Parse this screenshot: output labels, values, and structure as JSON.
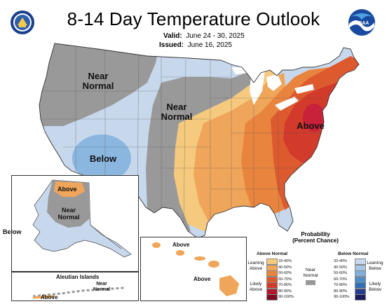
{
  "header": {
    "title": "8-14 Day Temperature Outlook",
    "valid_label": "Valid:",
    "valid_value": "June 24 - 30, 2025",
    "issued_label": "Issued:",
    "issued_value": "June 16, 2025"
  },
  "logos": {
    "noaa": "NOAA"
  },
  "map": {
    "conus_labels": {
      "near_normal_west": "Near Normal",
      "near_normal_central": "Near Normal",
      "below_southwest": "Below",
      "above_east": "Above"
    },
    "alaska_labels": {
      "above": "Above",
      "near_normal": "Near Normal",
      "below": "Below",
      "aleutian_title": "Aleutian Islands",
      "aleutian_near_normal": "Near Normal",
      "aleutian_above": "Above"
    },
    "hawaii_labels": {
      "above_top": "Above",
      "above_bottom": "Above"
    }
  },
  "legend": {
    "title": "Probability",
    "subtitle": "(Percent Chance)",
    "above_header": "Above Normal",
    "below_header": "Below Normal",
    "leaning_above": "Leaning Above",
    "likely_above": "Likely Above",
    "near_normal": "Near Normal",
    "leaning_below": "Leaning Below",
    "likely_below": "Likely Below",
    "above_bins": [
      "33-40%",
      "40-50%",
      "50-60%",
      "60-70%",
      "70-80%",
      "80-90%",
      "90-100%"
    ],
    "below_bins": [
      "33-40%",
      "40-50%",
      "50-60%",
      "60-70%",
      "70-80%",
      "80-90%",
      "90-100%"
    ],
    "above_colors": [
      "#f6ca7e",
      "#efa55a",
      "#e9843f",
      "#dd5a2f",
      "#d23a2c",
      "#b3172b",
      "#7d0b23"
    ],
    "below_colors": [
      "#c7d8ed",
      "#a9c6e6",
      "#7fb0dd",
      "#4c8dca",
      "#2f6fb6",
      "#243d8f",
      "#1b1c5e"
    ],
    "near_color": "#999999"
  }
}
